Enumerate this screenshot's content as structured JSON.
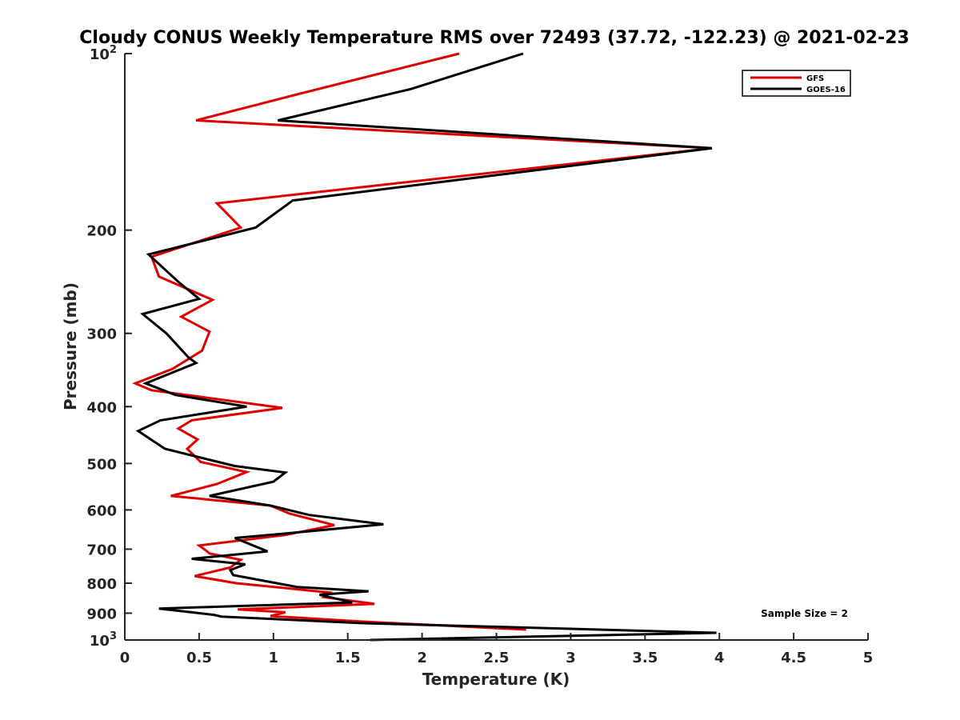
{
  "chart_data": {
    "type": "line",
    "title": "Cloudy CONUS Weekly Temperature RMS over 72493 (37.72, -122.23) @ 2021-02-23",
    "xlabel": "Temperature (K)",
    "ylabel": "Pressure (mb)",
    "xlim": [
      0,
      5
    ],
    "ylim": [
      100,
      1000
    ],
    "y_scale": "log",
    "y_reversed": true,
    "grid": false,
    "legend_position": "top-right",
    "x_ticks": [
      "0",
      "0.5",
      "1",
      "1.5",
      "2",
      "2.5",
      "3",
      "3.5",
      "4",
      "4.5",
      "5"
    ],
    "y_ticks": [
      {
        "value": 100,
        "label": "10",
        "sup": "2"
      },
      {
        "value": 200,
        "label": "200"
      },
      {
        "value": 300,
        "label": "300"
      },
      {
        "value": 400,
        "label": "400"
      },
      {
        "value": 500,
        "label": "500"
      },
      {
        "value": 600,
        "label": "600"
      },
      {
        "value": 700,
        "label": "700"
      },
      {
        "value": 800,
        "label": "800"
      },
      {
        "value": 900,
        "label": "900"
      },
      {
        "value": 1000,
        "label": "10",
        "sup": "3"
      }
    ],
    "annotation": "Sample Size = 2",
    "series": [
      {
        "name": "GFS",
        "color": "#e00000",
        "points": [
          [
            2.25,
            100
          ],
          [
            1.18,
            117
          ],
          [
            0.48,
            130
          ],
          [
            3.95,
            145
          ],
          [
            0.62,
            180
          ],
          [
            0.78,
            198
          ],
          [
            0.18,
            222
          ],
          [
            0.23,
            240
          ],
          [
            0.59,
            263
          ],
          [
            0.38,
            281
          ],
          [
            0.57,
            298
          ],
          [
            0.52,
            321
          ],
          [
            0.32,
            345
          ],
          [
            0.07,
            365
          ],
          [
            0.18,
            375
          ],
          [
            1.06,
            402
          ],
          [
            0.45,
            422
          ],
          [
            0.36,
            436
          ],
          [
            0.49,
            455
          ],
          [
            0.42,
            472
          ],
          [
            0.51,
            497
          ],
          [
            0.82,
            517
          ],
          [
            0.62,
            542
          ],
          [
            0.31,
            568
          ],
          [
            0.98,
            590
          ],
          [
            1.11,
            609
          ],
          [
            1.41,
            637
          ],
          [
            1.08,
            662
          ],
          [
            0.5,
            690
          ],
          [
            0.55,
            705
          ],
          [
            0.57,
            712
          ],
          [
            0.78,
            730
          ],
          [
            0.71,
            752
          ],
          [
            0.47,
            778
          ],
          [
            0.75,
            800
          ],
          [
            1.38,
            830
          ],
          [
            1.34,
            845
          ],
          [
            1.68,
            868
          ],
          [
            0.76,
            887
          ],
          [
            1.08,
            897
          ],
          [
            0.98,
            910
          ],
          [
            1.59,
            930
          ],
          [
            2.7,
            960
          ]
        ]
      },
      {
        "name": "GOES-16",
        "color": "#000000",
        "points": [
          [
            2.68,
            100
          ],
          [
            1.92,
            115
          ],
          [
            1.03,
            130
          ],
          [
            3.95,
            145
          ],
          [
            1.13,
            178
          ],
          [
            0.88,
            198
          ],
          [
            0.16,
            220
          ],
          [
            0.36,
            245
          ],
          [
            0.5,
            262
          ],
          [
            0.12,
            278
          ],
          [
            0.28,
            300
          ],
          [
            0.43,
            330
          ],
          [
            0.48,
            337
          ],
          [
            0.14,
            365
          ],
          [
            0.34,
            382
          ],
          [
            0.82,
            400
          ],
          [
            0.24,
            422
          ],
          [
            0.09,
            440
          ],
          [
            0.27,
            472
          ],
          [
            0.74,
            505
          ],
          [
            1.08,
            518
          ],
          [
            1.0,
            537
          ],
          [
            0.57,
            568
          ],
          [
            0.98,
            590
          ],
          [
            1.24,
            612
          ],
          [
            1.74,
            635
          ],
          [
            1.03,
            660
          ],
          [
            0.74,
            670
          ],
          [
            0.96,
            706
          ],
          [
            0.45,
            727
          ],
          [
            0.81,
            743
          ],
          [
            0.71,
            760
          ],
          [
            0.73,
            775
          ],
          [
            1.16,
            812
          ],
          [
            1.64,
            826
          ],
          [
            1.31,
            837
          ],
          [
            1.53,
            863
          ],
          [
            0.23,
            884
          ],
          [
            0.6,
            906
          ],
          [
            0.65,
            912
          ],
          [
            1.59,
            936
          ],
          [
            3.98,
            972
          ],
          [
            1.65,
            1000
          ]
        ]
      }
    ]
  }
}
